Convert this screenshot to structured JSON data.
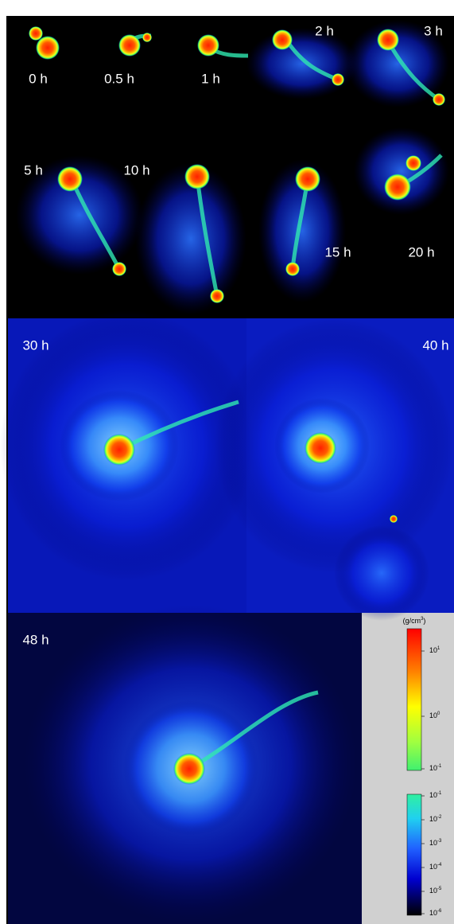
{
  "panels": [
    {
      "label": "0 h"
    },
    {
      "label": "0.5 h"
    },
    {
      "label": "1 h"
    },
    {
      "label": "2 h"
    },
    {
      "label": "3 h"
    },
    {
      "label": "5 h"
    },
    {
      "label": "10 h"
    },
    {
      "label": "15 h"
    },
    {
      "label": "20 h"
    },
    {
      "label": "30 h"
    },
    {
      "label": "40 h"
    },
    {
      "label": "48 h"
    }
  ],
  "colorbar": {
    "unit": {
      "text": "(g/cm",
      "sup": "3",
      "close": ")"
    },
    "upper_ticks": [
      {
        "base": "10",
        "exp": "1"
      },
      {
        "base": "10",
        "exp": "0"
      },
      {
        "base": "10",
        "exp": "-1"
      }
    ],
    "lower_ticks": [
      {
        "base": "10",
        "exp": "-1"
      },
      {
        "base": "10",
        "exp": "-2"
      },
      {
        "base": "10",
        "exp": "-3"
      },
      {
        "base": "10",
        "exp": "-4"
      },
      {
        "base": "10",
        "exp": "-5"
      },
      {
        "base": "10",
        "exp": "-6"
      }
    ]
  }
}
